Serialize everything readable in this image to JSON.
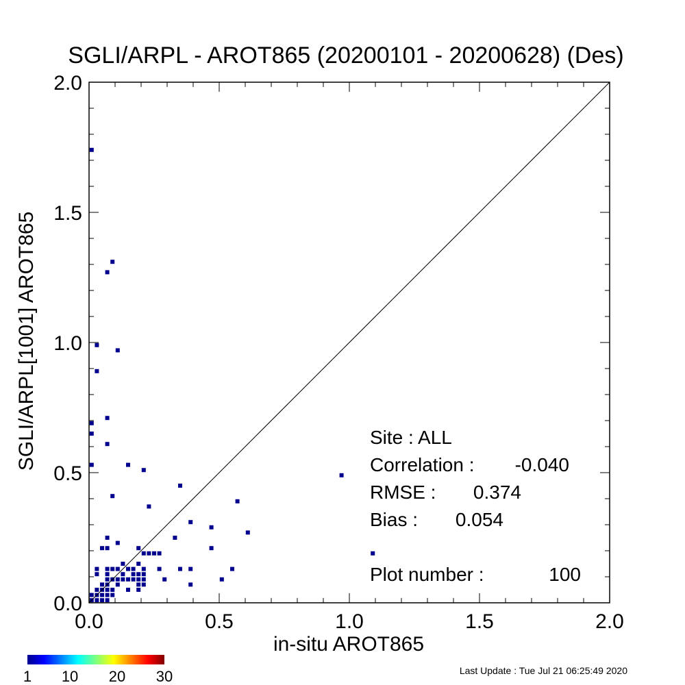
{
  "chart_data": {
    "type": "heatmap",
    "title": "SGLI/ARPL - AROT865 (20200101 - 20200628) (Des)",
    "xlabel": "in-situ AROT865",
    "ylabel": "SGLI/ARPL[1001]    AROT865",
    "xlim": [
      0.0,
      2.0
    ],
    "ylim": [
      0.0,
      2.0
    ],
    "x_ticks": [
      "0.0",
      "0.5",
      "1.0",
      "1.5",
      "2.0"
    ],
    "y_ticks": [
      "0.0",
      "0.5",
      "1.0",
      "1.5",
      "2.0"
    ],
    "one_to_one_line": true,
    "cell_size": 0.02,
    "cell_color": "#00008f",
    "colorbar": {
      "min": 1,
      "max": 30,
      "ticks": [
        "1",
        "10",
        "20",
        "30"
      ],
      "colormap": "jet"
    },
    "points": [
      [
        0.0,
        1.73
      ],
      [
        0.08,
        1.3
      ],
      [
        0.06,
        1.26
      ],
      [
        0.02,
        0.98
      ],
      [
        0.1,
        0.96
      ],
      [
        0.02,
        0.88
      ],
      [
        0.06,
        0.7
      ],
      [
        0.0,
        0.68
      ],
      [
        0.0,
        0.64
      ],
      [
        0.06,
        0.6
      ],
      [
        0.0,
        0.52
      ],
      [
        0.14,
        0.52
      ],
      [
        0.2,
        0.5
      ],
      [
        0.96,
        0.48
      ],
      [
        0.34,
        0.44
      ],
      [
        0.08,
        0.4
      ],
      [
        0.56,
        0.38
      ],
      [
        0.22,
        0.36
      ],
      [
        0.38,
        0.3
      ],
      [
        0.46,
        0.28
      ],
      [
        0.6,
        0.26
      ],
      [
        0.32,
        0.24
      ],
      [
        0.06,
        0.24
      ],
      [
        0.1,
        0.22
      ],
      [
        0.04,
        0.2
      ],
      [
        0.06,
        0.2
      ],
      [
        0.18,
        0.2
      ],
      [
        0.46,
        0.2
      ],
      [
        0.2,
        0.18
      ],
      [
        0.22,
        0.18
      ],
      [
        0.24,
        0.18
      ],
      [
        0.26,
        0.18
      ],
      [
        1.08,
        0.18
      ],
      [
        0.12,
        0.14
      ],
      [
        0.18,
        0.14
      ],
      [
        0.02,
        0.12
      ],
      [
        0.06,
        0.12
      ],
      [
        0.08,
        0.12
      ],
      [
        0.1,
        0.12
      ],
      [
        0.14,
        0.12
      ],
      [
        0.16,
        0.12
      ],
      [
        0.2,
        0.12
      ],
      [
        0.26,
        0.12
      ],
      [
        0.34,
        0.12
      ],
      [
        0.38,
        0.12
      ],
      [
        0.54,
        0.12
      ],
      [
        0.02,
        0.1
      ],
      [
        0.06,
        0.1
      ],
      [
        0.12,
        0.1
      ],
      [
        0.16,
        0.1
      ],
      [
        0.18,
        0.1
      ],
      [
        0.2,
        0.1
      ],
      [
        0.06,
        0.08
      ],
      [
        0.08,
        0.08
      ],
      [
        0.1,
        0.08
      ],
      [
        0.12,
        0.08
      ],
      [
        0.14,
        0.08
      ],
      [
        0.16,
        0.08
      ],
      [
        0.18,
        0.08
      ],
      [
        0.2,
        0.08
      ],
      [
        0.28,
        0.08
      ],
      [
        0.5,
        0.08
      ],
      [
        0.04,
        0.06
      ],
      [
        0.06,
        0.06
      ],
      [
        0.1,
        0.06
      ],
      [
        0.18,
        0.06
      ],
      [
        0.2,
        0.06
      ],
      [
        0.38,
        0.06
      ],
      [
        0.02,
        0.04
      ],
      [
        0.04,
        0.04
      ],
      [
        0.06,
        0.04
      ],
      [
        0.08,
        0.04
      ],
      [
        0.14,
        0.04
      ],
      [
        0.18,
        0.04
      ],
      [
        0.0,
        0.02
      ],
      [
        0.02,
        0.02
      ],
      [
        0.04,
        0.02
      ],
      [
        0.06,
        0.02
      ],
      [
        0.08,
        0.02
      ],
      [
        0.0,
        0.0
      ],
      [
        0.02,
        0.0
      ],
      [
        0.04,
        0.0
      ],
      [
        0.06,
        0.0
      ]
    ],
    "stats": {
      "site": "Site : ALL",
      "correlation_label": "Correlation :",
      "correlation": "-0.040",
      "rmse_label": "RMSE :",
      "rmse": "0.374",
      "bias_label": "Bias :",
      "bias": "0.054",
      "plot_number_label": "Plot number :",
      "plot_number": "100"
    }
  },
  "footer": {
    "last_update": "Last Update : Tue Jul 21 06:25:49 2020"
  }
}
